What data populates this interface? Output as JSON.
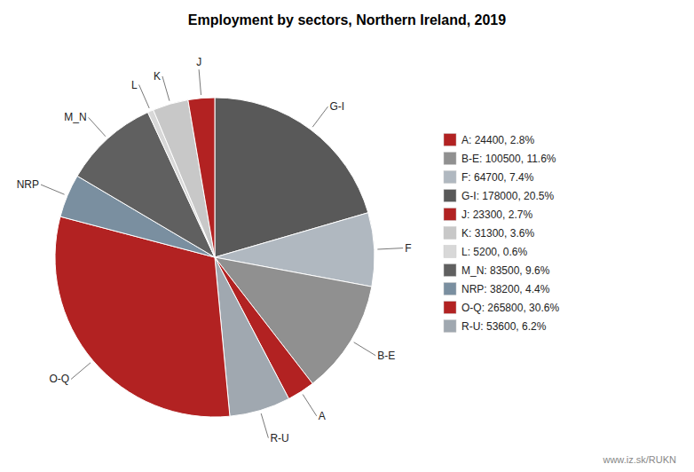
{
  "chart_data": {
    "type": "pie",
    "title": "Employment by sectors, Northern Ireland, 2019",
    "categories": [
      "G-I",
      "F",
      "B-E",
      "A",
      "R-U",
      "O-Q",
      "NRP",
      "M_N",
      "L",
      "K",
      "J"
    ],
    "values": [
      178000,
      64700,
      100500,
      24400,
      53600,
      265800,
      38200,
      83500,
      5200,
      31300,
      23300
    ],
    "colors": [
      "#595959",
      "#b0b8c0",
      "#909090",
      "#b22222",
      "#a0a8b0",
      "#b22222",
      "#7a8fa0",
      "#606060",
      "#d8d8d8",
      "#c8c8c8",
      "#b22222"
    ],
    "legend": "right",
    "legend_entries": [
      {
        "category": "A",
        "label": "A: 24400, 2.8%"
      },
      {
        "category": "B-E",
        "label": "B-E: 100500, 11.6%"
      },
      {
        "category": "F",
        "label": "F: 64700, 7.4%"
      },
      {
        "category": "G-I",
        "label": "G-I: 178000, 20.5%"
      },
      {
        "category": "J",
        "label": "J: 23300, 2.7%"
      },
      {
        "category": "K",
        "label": "K: 31300, 3.6%"
      },
      {
        "category": "L",
        "label": "L: 5200, 0.6%"
      },
      {
        "category": "M_N",
        "label": "M_N: 83500, 9.6%"
      },
      {
        "category": "NRP",
        "label": "NRP: 38200, 4.4%"
      },
      {
        "category": "O-Q",
        "label": "O-Q: 265800, 30.6%"
      },
      {
        "category": "R-U",
        "label": "R-U: 53600, 6.2%"
      }
    ],
    "annotations": [
      "www.iz.sk/RUKN"
    ]
  }
}
